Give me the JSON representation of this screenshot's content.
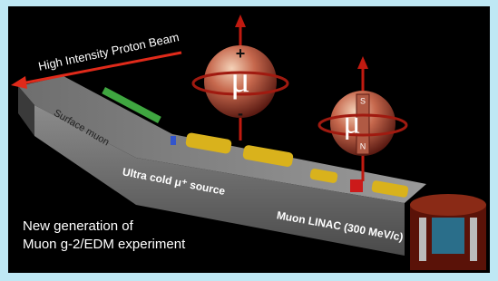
{
  "beam_label": "High Intensity Proton Beam",
  "spheres": [
    {
      "symbol": "μ",
      "top_pole": "+",
      "bottom_pole": "-"
    },
    {
      "symbol": "μ",
      "top_pole": "S",
      "bottom_pole": "N"
    }
  ],
  "section_labels": [
    "Surface muon",
    "Ultra cold μ⁺ source",
    "Muon LINAC (300 MeV/c)"
  ],
  "caption": [
    "New generation of",
    "Muon g-2/EDM experiment"
  ]
}
